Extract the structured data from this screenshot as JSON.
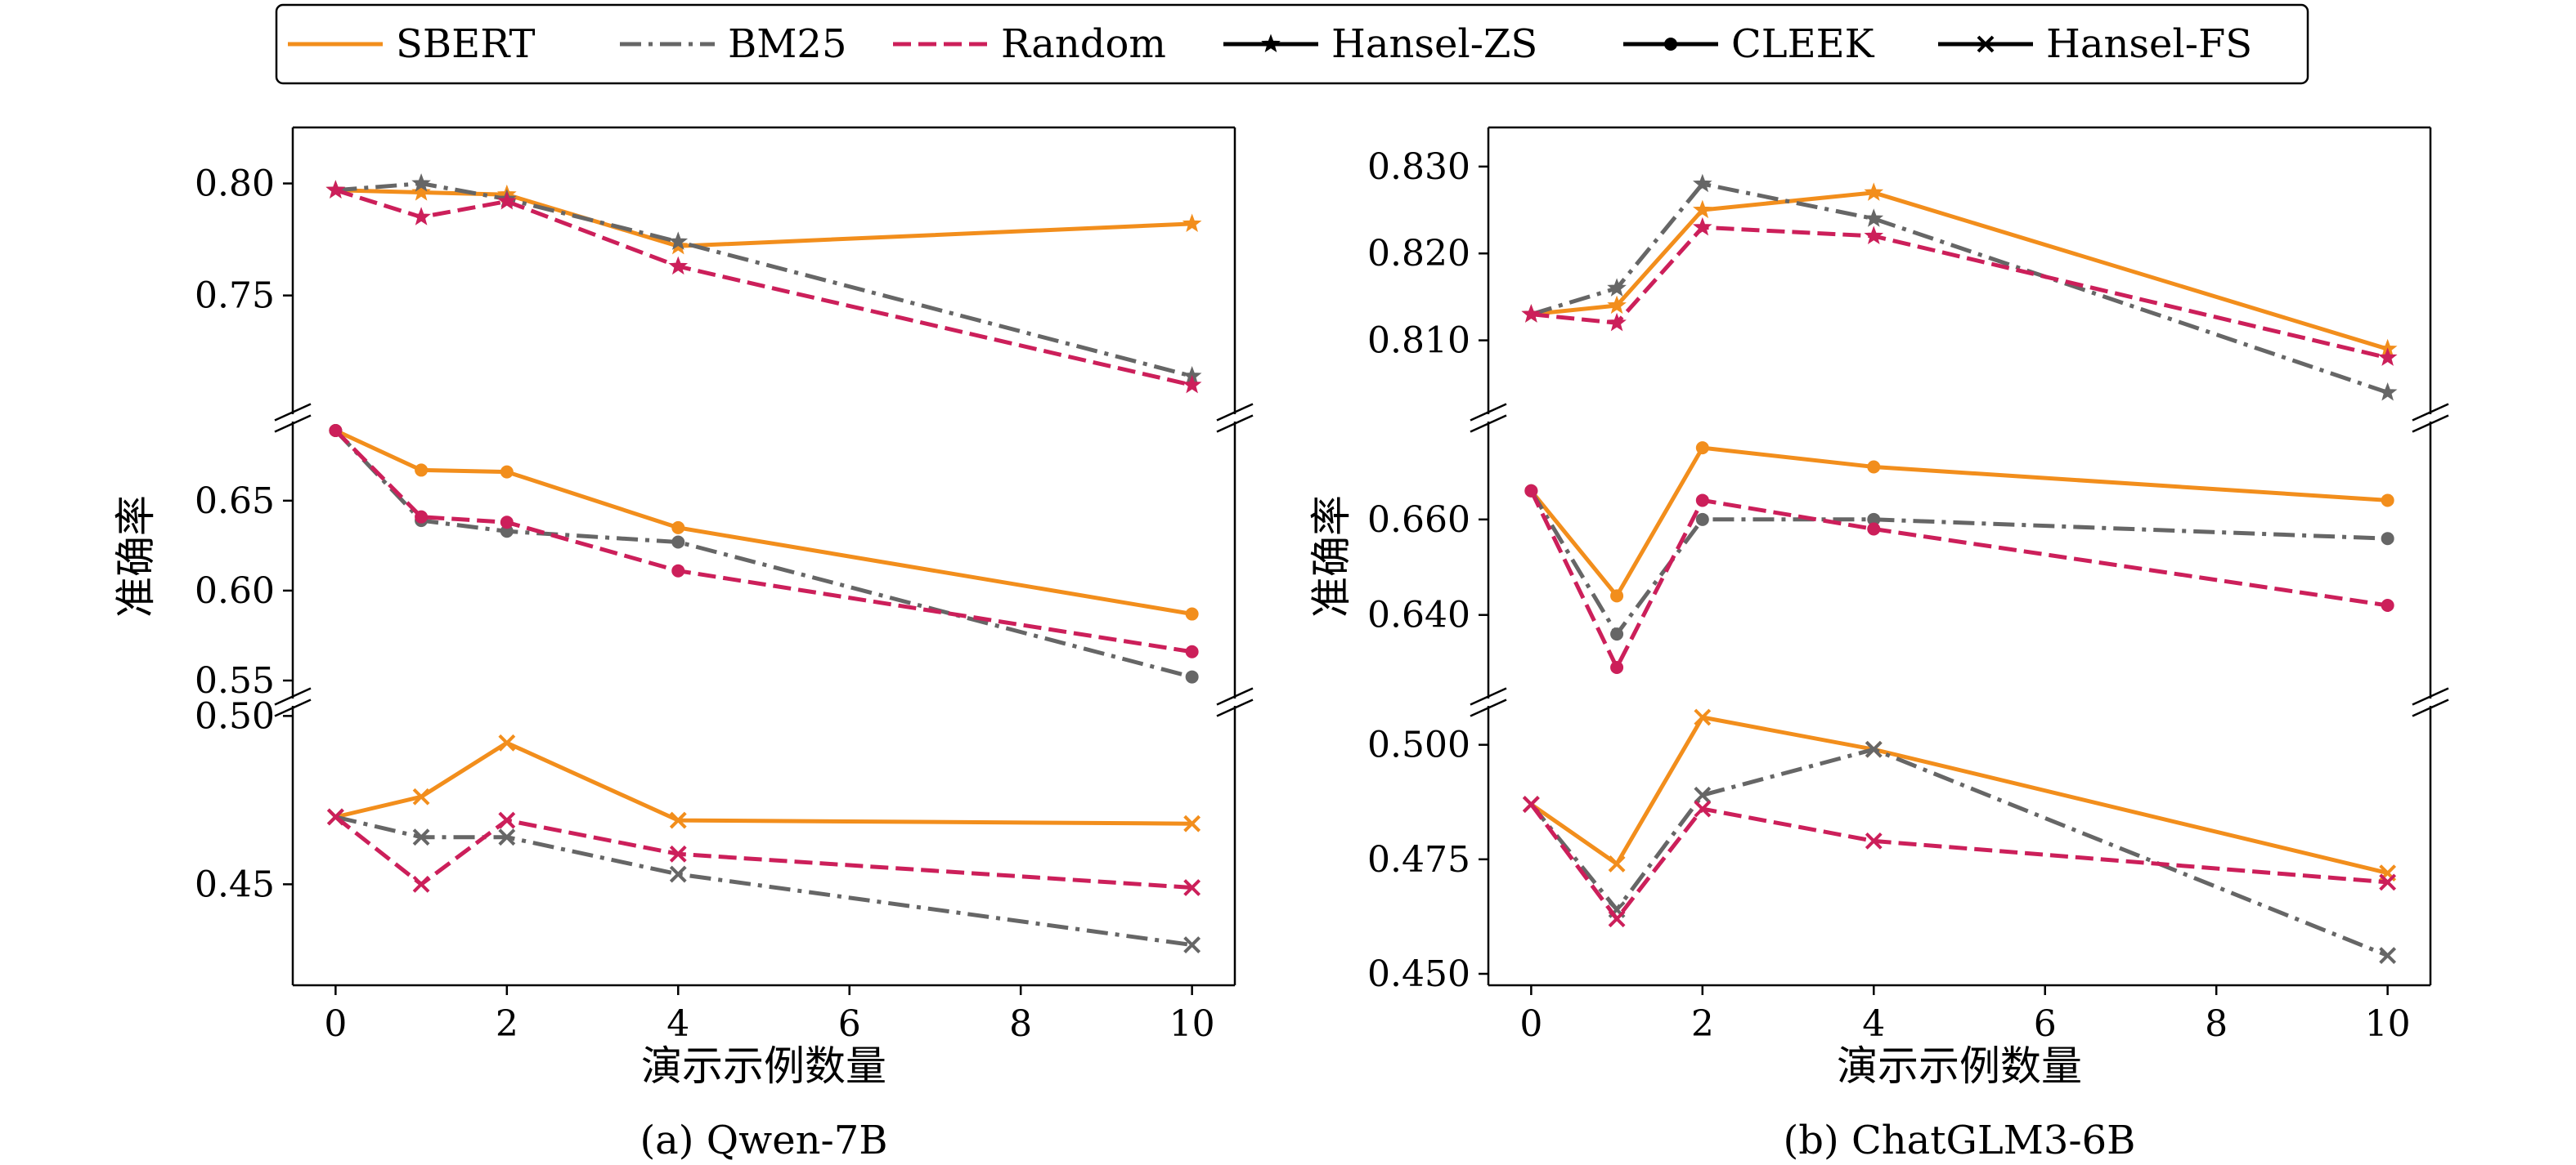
{
  "legend": {
    "placement": "top-center",
    "entries": [
      {
        "label": "SBERT",
        "color": "#f28e1c",
        "dash": "solid",
        "marker": "none"
      },
      {
        "label": "BM25",
        "color": "#666666",
        "dash": "dashdot",
        "marker": "none"
      },
      {
        "label": "Random",
        "color": "#cc1f5a",
        "dash": "dashed",
        "marker": "none"
      },
      {
        "label": "Hansel-ZS",
        "color": "#000000",
        "dash": "solid",
        "marker": "star"
      },
      {
        "label": "CLEEK",
        "color": "#000000",
        "dash": "solid",
        "marker": "circle"
      },
      {
        "label": "Hansel-FS",
        "color": "#000000",
        "dash": "solid",
        "marker": "x"
      }
    ]
  },
  "chart_data": [
    {
      "type": "line",
      "caption": "(a) Qwen-7B",
      "xlabel": "演示示例数量",
      "ylabel": "准确率",
      "x": [
        0,
        1,
        2,
        4,
        10
      ],
      "xlim": [
        -0.5,
        10.5
      ],
      "xticks": [
        "0",
        "2",
        "4",
        "6",
        "8",
        "10"
      ],
      "grid": false,
      "panels": [
        {
          "method": "Hansel-ZS",
          "marker": "star",
          "ylim": [
            0.697,
            0.825
          ],
          "yticks": [
            0.75,
            0.8
          ],
          "ytick_labels": [
            "0.75",
            "0.80"
          ],
          "series": [
            {
              "name": "SBERT",
              "values": [
                0.797,
                0.796,
                0.795,
                0.772,
                0.782
              ]
            },
            {
              "name": "BM25",
              "values": [
                0.797,
                0.8,
                0.793,
                0.774,
                0.714
              ]
            },
            {
              "name": "Random",
              "values": [
                0.797,
                0.785,
                0.792,
                0.763,
                0.71
              ]
            }
          ]
        },
        {
          "method": "CLEEK",
          "marker": "circle",
          "ylim": [
            0.54,
            0.694
          ],
          "yticks": [
            0.55,
            0.6,
            0.65
          ],
          "ytick_labels": [
            "0.55",
            "0.60",
            "0.65"
          ],
          "series": [
            {
              "name": "SBERT",
              "values": [
                0.689,
                0.667,
                0.666,
                0.635,
                0.587
              ]
            },
            {
              "name": "BM25",
              "values": [
                0.689,
                0.639,
                0.633,
                0.627,
                0.552
              ]
            },
            {
              "name": "Random",
              "values": [
                0.689,
                0.641,
                0.638,
                0.611,
                0.566
              ]
            }
          ]
        },
        {
          "method": "Hansel-FS",
          "marker": "x",
          "ylim": [
            0.42,
            0.503
          ],
          "yticks": [
            0.45,
            0.5
          ],
          "ytick_labels": [
            "0.45",
            "0.50"
          ],
          "series": [
            {
              "name": "SBERT",
              "values": [
                0.47,
                0.476,
                0.492,
                0.469,
                0.468
              ]
            },
            {
              "name": "BM25",
              "values": [
                0.47,
                0.464,
                0.464,
                0.453,
                0.432
              ]
            },
            {
              "name": "Random",
              "values": [
                0.47,
                0.45,
                0.469,
                0.459,
                0.449
              ]
            }
          ]
        }
      ]
    },
    {
      "type": "line",
      "caption": "(b) ChatGLM3-6B",
      "xlabel": "演示示例数量",
      "ylabel": "准确率",
      "x": [
        0,
        1,
        2,
        4,
        10
      ],
      "xlim": [
        -0.5,
        10.5
      ],
      "xticks": [
        "0",
        "2",
        "4",
        "6",
        "8",
        "10"
      ],
      "grid": false,
      "panels": [
        {
          "method": "Hansel-ZS",
          "marker": "star",
          "ylim": [
            0.8015,
            0.8345
          ],
          "yticks": [
            0.81,
            0.82,
            0.83
          ],
          "ytick_labels": [
            "0.810",
            "0.820",
            "0.830"
          ],
          "series": [
            {
              "name": "SBERT",
              "values": [
                0.813,
                0.814,
                0.825,
                0.827,
                0.809
              ]
            },
            {
              "name": "BM25",
              "values": [
                0.813,
                0.816,
                0.828,
                0.824,
                0.804
              ]
            },
            {
              "name": "Random",
              "values": [
                0.813,
                0.812,
                0.823,
                0.822,
                0.808
              ]
            }
          ]
        },
        {
          "method": "CLEEK",
          "marker": "circle",
          "ylim": [
            0.6225,
            0.6805
          ],
          "yticks": [
            0.64,
            0.66
          ],
          "ytick_labels": [
            "0.640",
            "0.660"
          ],
          "series": [
            {
              "name": "SBERT",
              "values": [
                0.666,
                0.644,
                0.675,
                0.671,
                0.664
              ]
            },
            {
              "name": "BM25",
              "values": [
                0.666,
                0.636,
                0.66,
                0.66,
                0.656
              ]
            },
            {
              "name": "Random",
              "values": [
                0.666,
                0.629,
                0.664,
                0.658,
                0.642
              ]
            }
          ]
        },
        {
          "method": "Hansel-FS",
          "marker": "x",
          "ylim": [
            0.4475,
            0.5085
          ],
          "yticks": [
            0.45,
            0.475,
            0.5
          ],
          "ytick_labels": [
            "0.450",
            "0.475",
            "0.500"
          ],
          "series": [
            {
              "name": "SBERT",
              "values": [
                0.487,
                0.474,
                0.506,
                0.499,
                0.472
              ]
            },
            {
              "name": "BM25",
              "values": [
                0.487,
                0.464,
                0.489,
                0.499,
                0.454
              ]
            },
            {
              "name": "Random",
              "values": [
                0.487,
                0.462,
                0.486,
                0.479,
                0.47
              ]
            }
          ]
        }
      ]
    }
  ]
}
